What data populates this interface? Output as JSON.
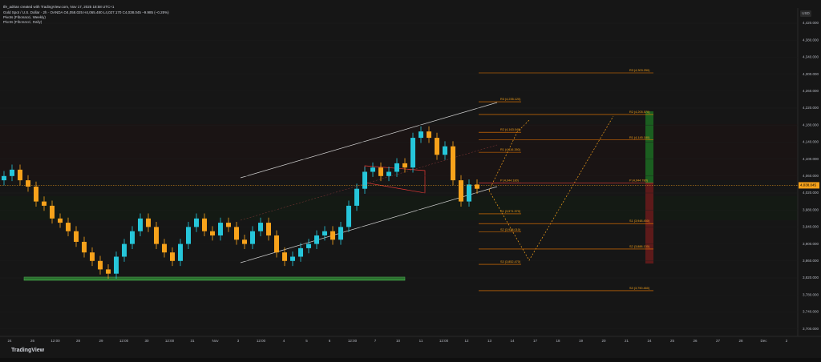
{
  "header": {
    "author": "tfe_adrian created with TradingView.com, Nov 17, 2025 18:58 UTC+1",
    "symbol": "Gold Spot / U.S. Dollar · 2h · OANDA  O4,058.025 H4,065.480 L4,027.170 C4,038.045 −9.985 (−0.25%)",
    "indicators": [
      "Pivots (Fibonacci, Weekly)",
      "Pivots (Fibonacci, Daily)"
    ]
  },
  "currency": "USD",
  "footer": "TradingView",
  "chart_data": {
    "type": "candlestick",
    "up_color": "#26c6da",
    "down_color": "#f7a21b",
    "ylim": [
      3700,
      4420
    ],
    "yticks": [
      {
        "value": 3700,
        "label": "3,700.000"
      },
      {
        "value": 3740,
        "label": "3,740.000"
      },
      {
        "value": 3780,
        "label": "3,780.000"
      },
      {
        "value": 3820,
        "label": "3,820.000"
      },
      {
        "value": 3860,
        "label": "3,860.000"
      },
      {
        "value": 3900,
        "label": "3,900.000"
      },
      {
        "value": 3940,
        "label": "3,940.000"
      },
      {
        "value": 3980,
        "label": "3,980.000"
      },
      {
        "value": 4020,
        "label": "4,020.000"
      },
      {
        "value": 4060,
        "label": "4,060.000"
      },
      {
        "value": 4100,
        "label": "4,100.000"
      },
      {
        "value": 4140,
        "label": "4,140.000"
      },
      {
        "value": 4180,
        "label": "4,180.000"
      },
      {
        "value": 4220,
        "label": "4,220.000"
      },
      {
        "value": 4260,
        "label": "4,260.000"
      },
      {
        "value": 4300,
        "label": "4,300.000"
      },
      {
        "value": 4340,
        "label": "4,340.000"
      },
      {
        "value": 4380,
        "label": "4,380.000"
      },
      {
        "value": 4420,
        "label": "4,420.000"
      }
    ],
    "x_labels": [
      "24",
      "26",
      "12:00",
      "28",
      "29",
      "12:00",
      "30",
      "12:00",
      "31",
      "Nov",
      "3",
      "12:00",
      "4",
      "5",
      "6",
      "12:00",
      "7",
      "10",
      "11",
      "12:00",
      "12",
      "13",
      "14",
      "17",
      "18",
      "19",
      "20",
      "21",
      "24",
      "25",
      "26",
      "27",
      "28",
      "Dec",
      "2"
    ],
    "open": [
      4050,
      4060,
      4075,
      4050,
      4035,
      4000,
      3990,
      3960,
      3950,
      3930,
      3905,
      3880,
      3860,
      3840,
      3830,
      3870,
      3900,
      3930,
      3960,
      3940,
      3900,
      3880,
      3860,
      3900,
      3940,
      3960,
      3930,
      3920,
      3950,
      3940,
      3910,
      3900,
      3930,
      3950,
      3920,
      3880,
      3860,
      3870,
      3890,
      3900,
      3920,
      3930,
      3910,
      3940,
      3990,
      4030,
      4070,
      4080,
      4060,
      4070,
      4090,
      4080,
      4150,
      4165,
      4150,
      4110,
      4130,
      4050,
      4000,
      4040
    ],
    "high": [
      4072,
      4087,
      4087,
      4062,
      4047,
      4012,
      4002,
      3972,
      3962,
      3942,
      3917,
      3892,
      3872,
      3852,
      3882,
      3912,
      3942,
      3972,
      3972,
      3952,
      3912,
      3892,
      3912,
      3952,
      3972,
      3972,
      3942,
      3962,
      3962,
      3952,
      3922,
      3942,
      3962,
      3962,
      3932,
      3892,
      3882,
      3902,
      3912,
      3932,
      3942,
      3942,
      3952,
      4002,
      4042,
      4082,
      4092,
      4092,
      4082,
      4102,
      4102,
      4162,
      4177,
      4177,
      4162,
      4142,
      4142,
      4062,
      4052,
      4052
    ],
    "low": [
      4038,
      4048,
      4038,
      4023,
      3988,
      3978,
      3948,
      3938,
      3918,
      3893,
      3868,
      3848,
      3828,
      3818,
      3818,
      3858,
      3888,
      3918,
      3928,
      3888,
      3868,
      3848,
      3848,
      3888,
      3928,
      3918,
      3908,
      3908,
      3928,
      3898,
      3888,
      3888,
      3918,
      3908,
      3868,
      3848,
      3848,
      3858,
      3878,
      3888,
      3908,
      3898,
      3898,
      3928,
      3978,
      4018,
      4058,
      4048,
      4048,
      4058,
      4068,
      4068,
      4138,
      4138,
      4098,
      4098,
      4038,
      3988,
      3988,
      4018
    ],
    "close": [
      4060,
      4075,
      4050,
      4035,
      4000,
      3990,
      3960,
      3950,
      3930,
      3905,
      3880,
      3860,
      3840,
      3830,
      3870,
      3900,
      3930,
      3960,
      3940,
      3900,
      3880,
      3860,
      3900,
      3940,
      3960,
      3930,
      3920,
      3950,
      3940,
      3910,
      3900,
      3930,
      3950,
      3920,
      3880,
      3860,
      3870,
      3890,
      3900,
      3920,
      3930,
      3910,
      3940,
      3990,
      4030,
      4070,
      4080,
      4060,
      4070,
      4090,
      4080,
      4150,
      4165,
      4150,
      4110,
      4130,
      4050,
      4000,
      4040,
      4030
    ],
    "current_price": {
      "value": 4038.045,
      "label": "4,038.045"
    },
    "pivots_daily": {
      "levels": [
        4235,
        4163,
        4116,
        4044,
        3971,
        3928,
        3852
      ],
      "labels": [
        "R3 (4,235.120)",
        "R2 (4,163.040)",
        "R1 (4,116.260)",
        "P (4,044.180)",
        "S1 (3,971.370)",
        "S2 (3,928.010)",
        "S3 (3,852.470)"
      ]
    },
    "pivots_weekly": {
      "levels": [
        4303,
        4205,
        4145,
        4044,
        3948,
        3888,
        3790
      ],
      "labels": [
        "R3 (4,303.250)",
        "R2 (4,205.570)",
        "R1 (4,145.180)",
        "P (4,044.780)",
        "S1 (3,948.450)",
        "S2 (3,888.130)",
        "S3 (3,790.460)"
      ]
    }
  }
}
